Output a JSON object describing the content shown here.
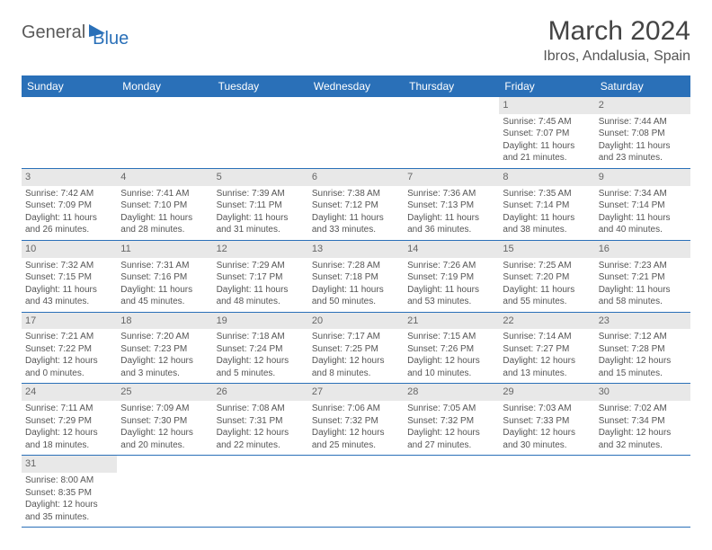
{
  "brand": {
    "word1": "General",
    "word2": "Blue"
  },
  "title": "March 2024",
  "location": "Ibros, Andalusia, Spain",
  "weekdays": [
    "Sunday",
    "Monday",
    "Tuesday",
    "Wednesday",
    "Thursday",
    "Friday",
    "Saturday"
  ],
  "colors": {
    "header_bg": "#2a70b8",
    "header_fg": "#ffffff",
    "daynum_bg": "#e8e8e8",
    "text": "#555555",
    "rule": "#2a70b8"
  },
  "weeks": [
    [
      null,
      null,
      null,
      null,
      null,
      {
        "n": "1",
        "sr": "Sunrise: 7:45 AM",
        "ss": "Sunset: 7:07 PM",
        "dl": "Daylight: 11 hours and 21 minutes."
      },
      {
        "n": "2",
        "sr": "Sunrise: 7:44 AM",
        "ss": "Sunset: 7:08 PM",
        "dl": "Daylight: 11 hours and 23 minutes."
      }
    ],
    [
      {
        "n": "3",
        "sr": "Sunrise: 7:42 AM",
        "ss": "Sunset: 7:09 PM",
        "dl": "Daylight: 11 hours and 26 minutes."
      },
      {
        "n": "4",
        "sr": "Sunrise: 7:41 AM",
        "ss": "Sunset: 7:10 PM",
        "dl": "Daylight: 11 hours and 28 minutes."
      },
      {
        "n": "5",
        "sr": "Sunrise: 7:39 AM",
        "ss": "Sunset: 7:11 PM",
        "dl": "Daylight: 11 hours and 31 minutes."
      },
      {
        "n": "6",
        "sr": "Sunrise: 7:38 AM",
        "ss": "Sunset: 7:12 PM",
        "dl": "Daylight: 11 hours and 33 minutes."
      },
      {
        "n": "7",
        "sr": "Sunrise: 7:36 AM",
        "ss": "Sunset: 7:13 PM",
        "dl": "Daylight: 11 hours and 36 minutes."
      },
      {
        "n": "8",
        "sr": "Sunrise: 7:35 AM",
        "ss": "Sunset: 7:14 PM",
        "dl": "Daylight: 11 hours and 38 minutes."
      },
      {
        "n": "9",
        "sr": "Sunrise: 7:34 AM",
        "ss": "Sunset: 7:14 PM",
        "dl": "Daylight: 11 hours and 40 minutes."
      }
    ],
    [
      {
        "n": "10",
        "sr": "Sunrise: 7:32 AM",
        "ss": "Sunset: 7:15 PM",
        "dl": "Daylight: 11 hours and 43 minutes."
      },
      {
        "n": "11",
        "sr": "Sunrise: 7:31 AM",
        "ss": "Sunset: 7:16 PM",
        "dl": "Daylight: 11 hours and 45 minutes."
      },
      {
        "n": "12",
        "sr": "Sunrise: 7:29 AM",
        "ss": "Sunset: 7:17 PM",
        "dl": "Daylight: 11 hours and 48 minutes."
      },
      {
        "n": "13",
        "sr": "Sunrise: 7:28 AM",
        "ss": "Sunset: 7:18 PM",
        "dl": "Daylight: 11 hours and 50 minutes."
      },
      {
        "n": "14",
        "sr": "Sunrise: 7:26 AM",
        "ss": "Sunset: 7:19 PM",
        "dl": "Daylight: 11 hours and 53 minutes."
      },
      {
        "n": "15",
        "sr": "Sunrise: 7:25 AM",
        "ss": "Sunset: 7:20 PM",
        "dl": "Daylight: 11 hours and 55 minutes."
      },
      {
        "n": "16",
        "sr": "Sunrise: 7:23 AM",
        "ss": "Sunset: 7:21 PM",
        "dl": "Daylight: 11 hours and 58 minutes."
      }
    ],
    [
      {
        "n": "17",
        "sr": "Sunrise: 7:21 AM",
        "ss": "Sunset: 7:22 PM",
        "dl": "Daylight: 12 hours and 0 minutes."
      },
      {
        "n": "18",
        "sr": "Sunrise: 7:20 AM",
        "ss": "Sunset: 7:23 PM",
        "dl": "Daylight: 12 hours and 3 minutes."
      },
      {
        "n": "19",
        "sr": "Sunrise: 7:18 AM",
        "ss": "Sunset: 7:24 PM",
        "dl": "Daylight: 12 hours and 5 minutes."
      },
      {
        "n": "20",
        "sr": "Sunrise: 7:17 AM",
        "ss": "Sunset: 7:25 PM",
        "dl": "Daylight: 12 hours and 8 minutes."
      },
      {
        "n": "21",
        "sr": "Sunrise: 7:15 AM",
        "ss": "Sunset: 7:26 PM",
        "dl": "Daylight: 12 hours and 10 minutes."
      },
      {
        "n": "22",
        "sr": "Sunrise: 7:14 AM",
        "ss": "Sunset: 7:27 PM",
        "dl": "Daylight: 12 hours and 13 minutes."
      },
      {
        "n": "23",
        "sr": "Sunrise: 7:12 AM",
        "ss": "Sunset: 7:28 PM",
        "dl": "Daylight: 12 hours and 15 minutes."
      }
    ],
    [
      {
        "n": "24",
        "sr": "Sunrise: 7:11 AM",
        "ss": "Sunset: 7:29 PM",
        "dl": "Daylight: 12 hours and 18 minutes."
      },
      {
        "n": "25",
        "sr": "Sunrise: 7:09 AM",
        "ss": "Sunset: 7:30 PM",
        "dl": "Daylight: 12 hours and 20 minutes."
      },
      {
        "n": "26",
        "sr": "Sunrise: 7:08 AM",
        "ss": "Sunset: 7:31 PM",
        "dl": "Daylight: 12 hours and 22 minutes."
      },
      {
        "n": "27",
        "sr": "Sunrise: 7:06 AM",
        "ss": "Sunset: 7:32 PM",
        "dl": "Daylight: 12 hours and 25 minutes."
      },
      {
        "n": "28",
        "sr": "Sunrise: 7:05 AM",
        "ss": "Sunset: 7:32 PM",
        "dl": "Daylight: 12 hours and 27 minutes."
      },
      {
        "n": "29",
        "sr": "Sunrise: 7:03 AM",
        "ss": "Sunset: 7:33 PM",
        "dl": "Daylight: 12 hours and 30 minutes."
      },
      {
        "n": "30",
        "sr": "Sunrise: 7:02 AM",
        "ss": "Sunset: 7:34 PM",
        "dl": "Daylight: 12 hours and 32 minutes."
      }
    ],
    [
      {
        "n": "31",
        "sr": "Sunrise: 8:00 AM",
        "ss": "Sunset: 8:35 PM",
        "dl": "Daylight: 12 hours and 35 minutes."
      },
      null,
      null,
      null,
      null,
      null,
      null
    ]
  ]
}
